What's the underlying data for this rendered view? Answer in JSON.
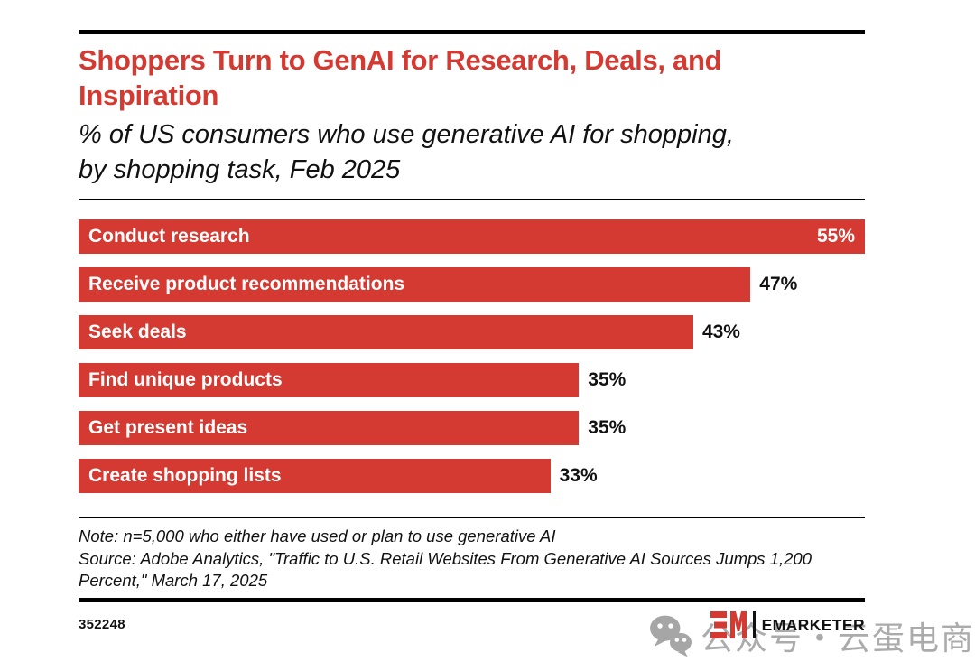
{
  "header": {
    "title": "Shoppers Turn to GenAI for Research, Deals, and Inspiration",
    "subtitle": "% of US consumers who use generative AI for shopping, by shopping task, Feb 2025"
  },
  "chart_data": {
    "type": "bar",
    "orientation": "horizontal",
    "title": "Shoppers Turn to GenAI for Research, Deals, and Inspiration",
    "subtitle": "% of US consumers who use generative AI for shopping, by shopping task, Feb 2025",
    "unit": "%",
    "xlim": [
      0,
      55
    ],
    "grid": false,
    "legend": "none",
    "categories": [
      "Conduct research",
      "Receive product recommendations",
      "Seek deals",
      "Find unique products",
      "Get present ideas",
      "Create shopping lists"
    ],
    "values": [
      55,
      47,
      43,
      35,
      35,
      33
    ],
    "value_labels": [
      "55%",
      "47%",
      "43%",
      "35%",
      "35%",
      "33%"
    ],
    "value_label_position": [
      "inside",
      "outside",
      "outside",
      "outside",
      "outside",
      "outside"
    ],
    "bar_color": "#d43a31"
  },
  "footnotes": {
    "note": "Note: n=5,000 who either have used or plan to use generative AI",
    "source": "Source: Adobe Analytics, \"Traffic to U.S. Retail Websites From Generative AI Sources Jumps 1,200 Percent,\" March 17, 2025"
  },
  "footer": {
    "chart_id": "352248",
    "brand": "EMARKETER",
    "logo_monogram": "EM"
  },
  "watermark": {
    "icon": "wechat-icon",
    "text": "公众号・云蛋电商圈"
  },
  "colors": {
    "accent_red": "#d43a31",
    "text": "#111111",
    "watermark_gray": "#ababab"
  }
}
